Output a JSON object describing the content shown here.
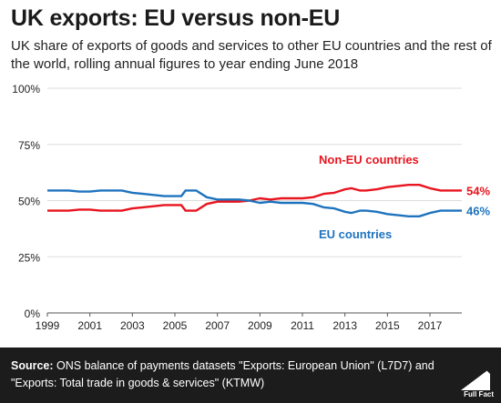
{
  "chart_data": {
    "type": "line",
    "title": "UK exports: EU versus non-EU",
    "subtitle": "UK share of exports of goods and services to other EU countries and the rest of the world, rolling annual figures to year ending June 2018",
    "xlim": [
      1999,
      2018.5
    ],
    "ylim": [
      0,
      100
    ],
    "x_ticks": [
      1999,
      2001,
      2003,
      2005,
      2007,
      2009,
      2011,
      2013,
      2015,
      2017
    ],
    "x_tick_labels": [
      "1999",
      "2001",
      "2003",
      "2005",
      "2007",
      "2009",
      "2011",
      "2013",
      "2015",
      "2017"
    ],
    "y_ticks": [
      0,
      25,
      50,
      75,
      100
    ],
    "y_tick_labels": [
      "0%",
      "25%",
      "50%",
      "75%",
      "100%"
    ],
    "grid": true,
    "series": [
      {
        "name": "Non-EU countries",
        "color": "#e8141e",
        "end_label": "54%",
        "points": [
          [
            1999,
            45.5
          ],
          [
            1999.5,
            45.5
          ],
          [
            2000,
            45.5
          ],
          [
            2000.5,
            46
          ],
          [
            2001,
            46
          ],
          [
            2001.5,
            45.5
          ],
          [
            2002,
            45.5
          ],
          [
            2002.5,
            45.5
          ],
          [
            2003,
            46.5
          ],
          [
            2003.5,
            47
          ],
          [
            2004,
            47.5
          ],
          [
            2004.5,
            48
          ],
          [
            2005,
            48
          ],
          [
            2005.3,
            48
          ],
          [
            2005.5,
            45.5
          ],
          [
            2006,
            45.5
          ],
          [
            2006.5,
            48.5
          ],
          [
            2007,
            49.5
          ],
          [
            2007.5,
            49.5
          ],
          [
            2008,
            49.5
          ],
          [
            2008.5,
            50
          ],
          [
            2009,
            51
          ],
          [
            2009.5,
            50.5
          ],
          [
            2010,
            51
          ],
          [
            2010.5,
            51
          ],
          [
            2011,
            51
          ],
          [
            2011.5,
            51.5
          ],
          [
            2012,
            53
          ],
          [
            2012.5,
            53.5
          ],
          [
            2013,
            55
          ],
          [
            2013.3,
            55.5
          ],
          [
            2013.7,
            54.5
          ],
          [
            2014,
            54.5
          ],
          [
            2014.5,
            55
          ],
          [
            2015,
            56
          ],
          [
            2015.5,
            56.5
          ],
          [
            2016,
            57
          ],
          [
            2016.5,
            57
          ],
          [
            2017,
            55.5
          ],
          [
            2017.5,
            54.5
          ],
          [
            2018,
            54.5
          ],
          [
            2018.5,
            54.5
          ]
        ]
      },
      {
        "name": "EU countries",
        "color": "#1e73be",
        "end_label": "46%",
        "points": [
          [
            1999,
            54.5
          ],
          [
            1999.5,
            54.5
          ],
          [
            2000,
            54.5
          ],
          [
            2000.5,
            54
          ],
          [
            2001,
            54
          ],
          [
            2001.5,
            54.5
          ],
          [
            2002,
            54.5
          ],
          [
            2002.5,
            54.5
          ],
          [
            2003,
            53.5
          ],
          [
            2003.5,
            53
          ],
          [
            2004,
            52.5
          ],
          [
            2004.5,
            52
          ],
          [
            2005,
            52
          ],
          [
            2005.3,
            52
          ],
          [
            2005.5,
            54.5
          ],
          [
            2006,
            54.5
          ],
          [
            2006.5,
            51.5
          ],
          [
            2007,
            50.5
          ],
          [
            2007.5,
            50.5
          ],
          [
            2008,
            50.5
          ],
          [
            2008.5,
            50
          ],
          [
            2009,
            49
          ],
          [
            2009.5,
            49.5
          ],
          [
            2010,
            49
          ],
          [
            2010.5,
            49
          ],
          [
            2011,
            49
          ],
          [
            2011.5,
            48.5
          ],
          [
            2012,
            47
          ],
          [
            2012.5,
            46.5
          ],
          [
            2013,
            45
          ],
          [
            2013.3,
            44.5
          ],
          [
            2013.7,
            45.5
          ],
          [
            2014,
            45.5
          ],
          [
            2014.5,
            45
          ],
          [
            2015,
            44
          ],
          [
            2015.5,
            43.5
          ],
          [
            2016,
            43
          ],
          [
            2016.5,
            43
          ],
          [
            2017,
            44.5
          ],
          [
            2017.5,
            45.5
          ],
          [
            2018,
            45.5
          ],
          [
            2018.5,
            45.5
          ]
        ]
      }
    ],
    "annotations": [
      {
        "text": "Non-EU countries",
        "color": "#e8141e",
        "series": 0
      },
      {
        "text": "EU countries",
        "color": "#1e73be",
        "series": 1
      }
    ]
  },
  "footer": {
    "source_label": "Source:",
    "source_text": "ONS balance of payments datasets \"Exports: European Union\" (L7D7) and \"Exports: Total trade in goods & services\" (KTMW)",
    "logo_text": "Full Fact"
  }
}
